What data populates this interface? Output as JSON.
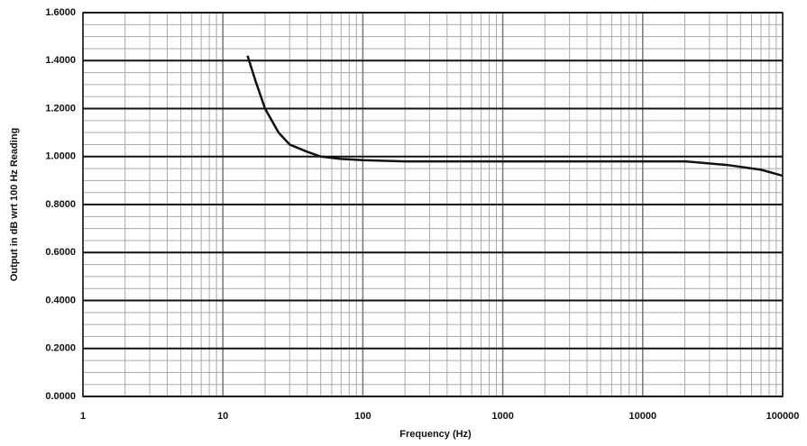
{
  "chart_data": {
    "type": "line",
    "x_label": "Frequency (Hz)",
    "y_label": "Output in dB wrt 100 Hz Reading",
    "x": [
      15,
      17,
      20,
      25,
      30,
      40,
      50,
      70,
      100,
      200,
      500,
      1000,
      5000,
      10000,
      20000,
      40000,
      70000,
      100000
    ],
    "values": [
      1.42,
      1.32,
      1.2,
      1.1,
      1.05,
      1.02,
      1.0,
      0.99,
      0.985,
      0.98,
      0.98,
      0.98,
      0.98,
      0.98,
      0.98,
      0.965,
      0.945,
      0.92
    ],
    "color": "#111111",
    "x_scale": "log",
    "xlim": [
      1,
      100000
    ],
    "xticks": [
      1,
      10,
      100,
      1000,
      10000,
      100000
    ],
    "ylim": [
      0,
      1.6
    ],
    "yticks": [
      {
        "value": 0,
        "label": "0.0000"
      },
      {
        "value": 0.2,
        "label": "0.2000"
      },
      {
        "value": 0.4,
        "label": "0.4000"
      },
      {
        "value": 0.6,
        "label": "0.6000"
      },
      {
        "value": 0.8,
        "label": "0.8000"
      },
      {
        "value": 1.0,
        "label": "1.0000"
      },
      {
        "value": 1.2,
        "label": "1.2000"
      },
      {
        "value": 1.4,
        "label": "1.4000"
      },
      {
        "value": 1.6,
        "label": "1.6000"
      }
    ],
    "grid": true
  }
}
